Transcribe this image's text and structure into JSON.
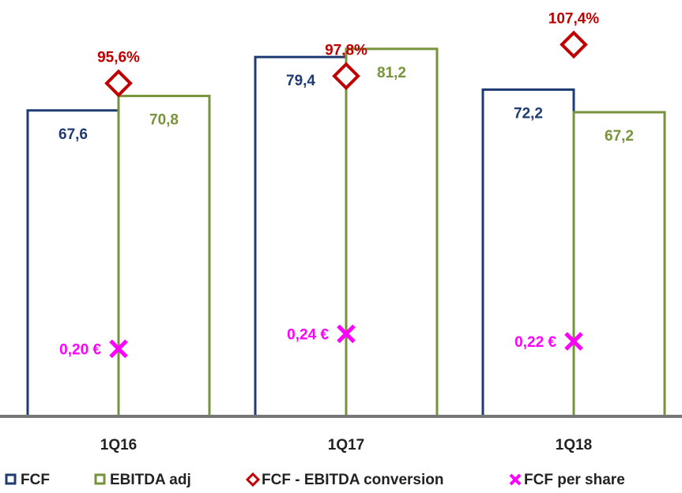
{
  "chart_data": {
    "type": "bar",
    "categories": [
      "1Q16",
      "1Q17",
      "1Q18"
    ],
    "ylim": [
      0,
      92
    ],
    "y2lim": [
      -6,
      121
    ],
    "y3lim": [
      0.02,
      1.13
    ],
    "series": [
      {
        "name": "FCF",
        "color": "#1f3b73",
        "values": [
          67.6,
          79.4,
          72.2
        ],
        "value_labels": [
          "67,6",
          "79,4",
          "72,2"
        ]
      },
      {
        "name": "EBITDA adj",
        "color": "#77933c",
        "values": [
          70.8,
          81.2,
          67.2
        ],
        "value_labels": [
          "70,8",
          "81,2",
          "67,2"
        ]
      },
      {
        "name": "FCF - EBITDA conversion",
        "color": "#c00000",
        "axis": "y2",
        "marker": "diamond",
        "values": [
          95.6,
          97.8,
          107.4
        ],
        "value_labels": [
          "95,6%",
          "97,8%",
          "107,4%"
        ]
      },
      {
        "name": "FCF per share",
        "color": "#ff00ff",
        "axis": "y3",
        "marker": "x",
        "values": [
          0.2,
          0.24,
          0.22
        ],
        "value_labels": [
          "0,20 €",
          "0,24 €",
          "0,22 €"
        ]
      }
    ]
  }
}
